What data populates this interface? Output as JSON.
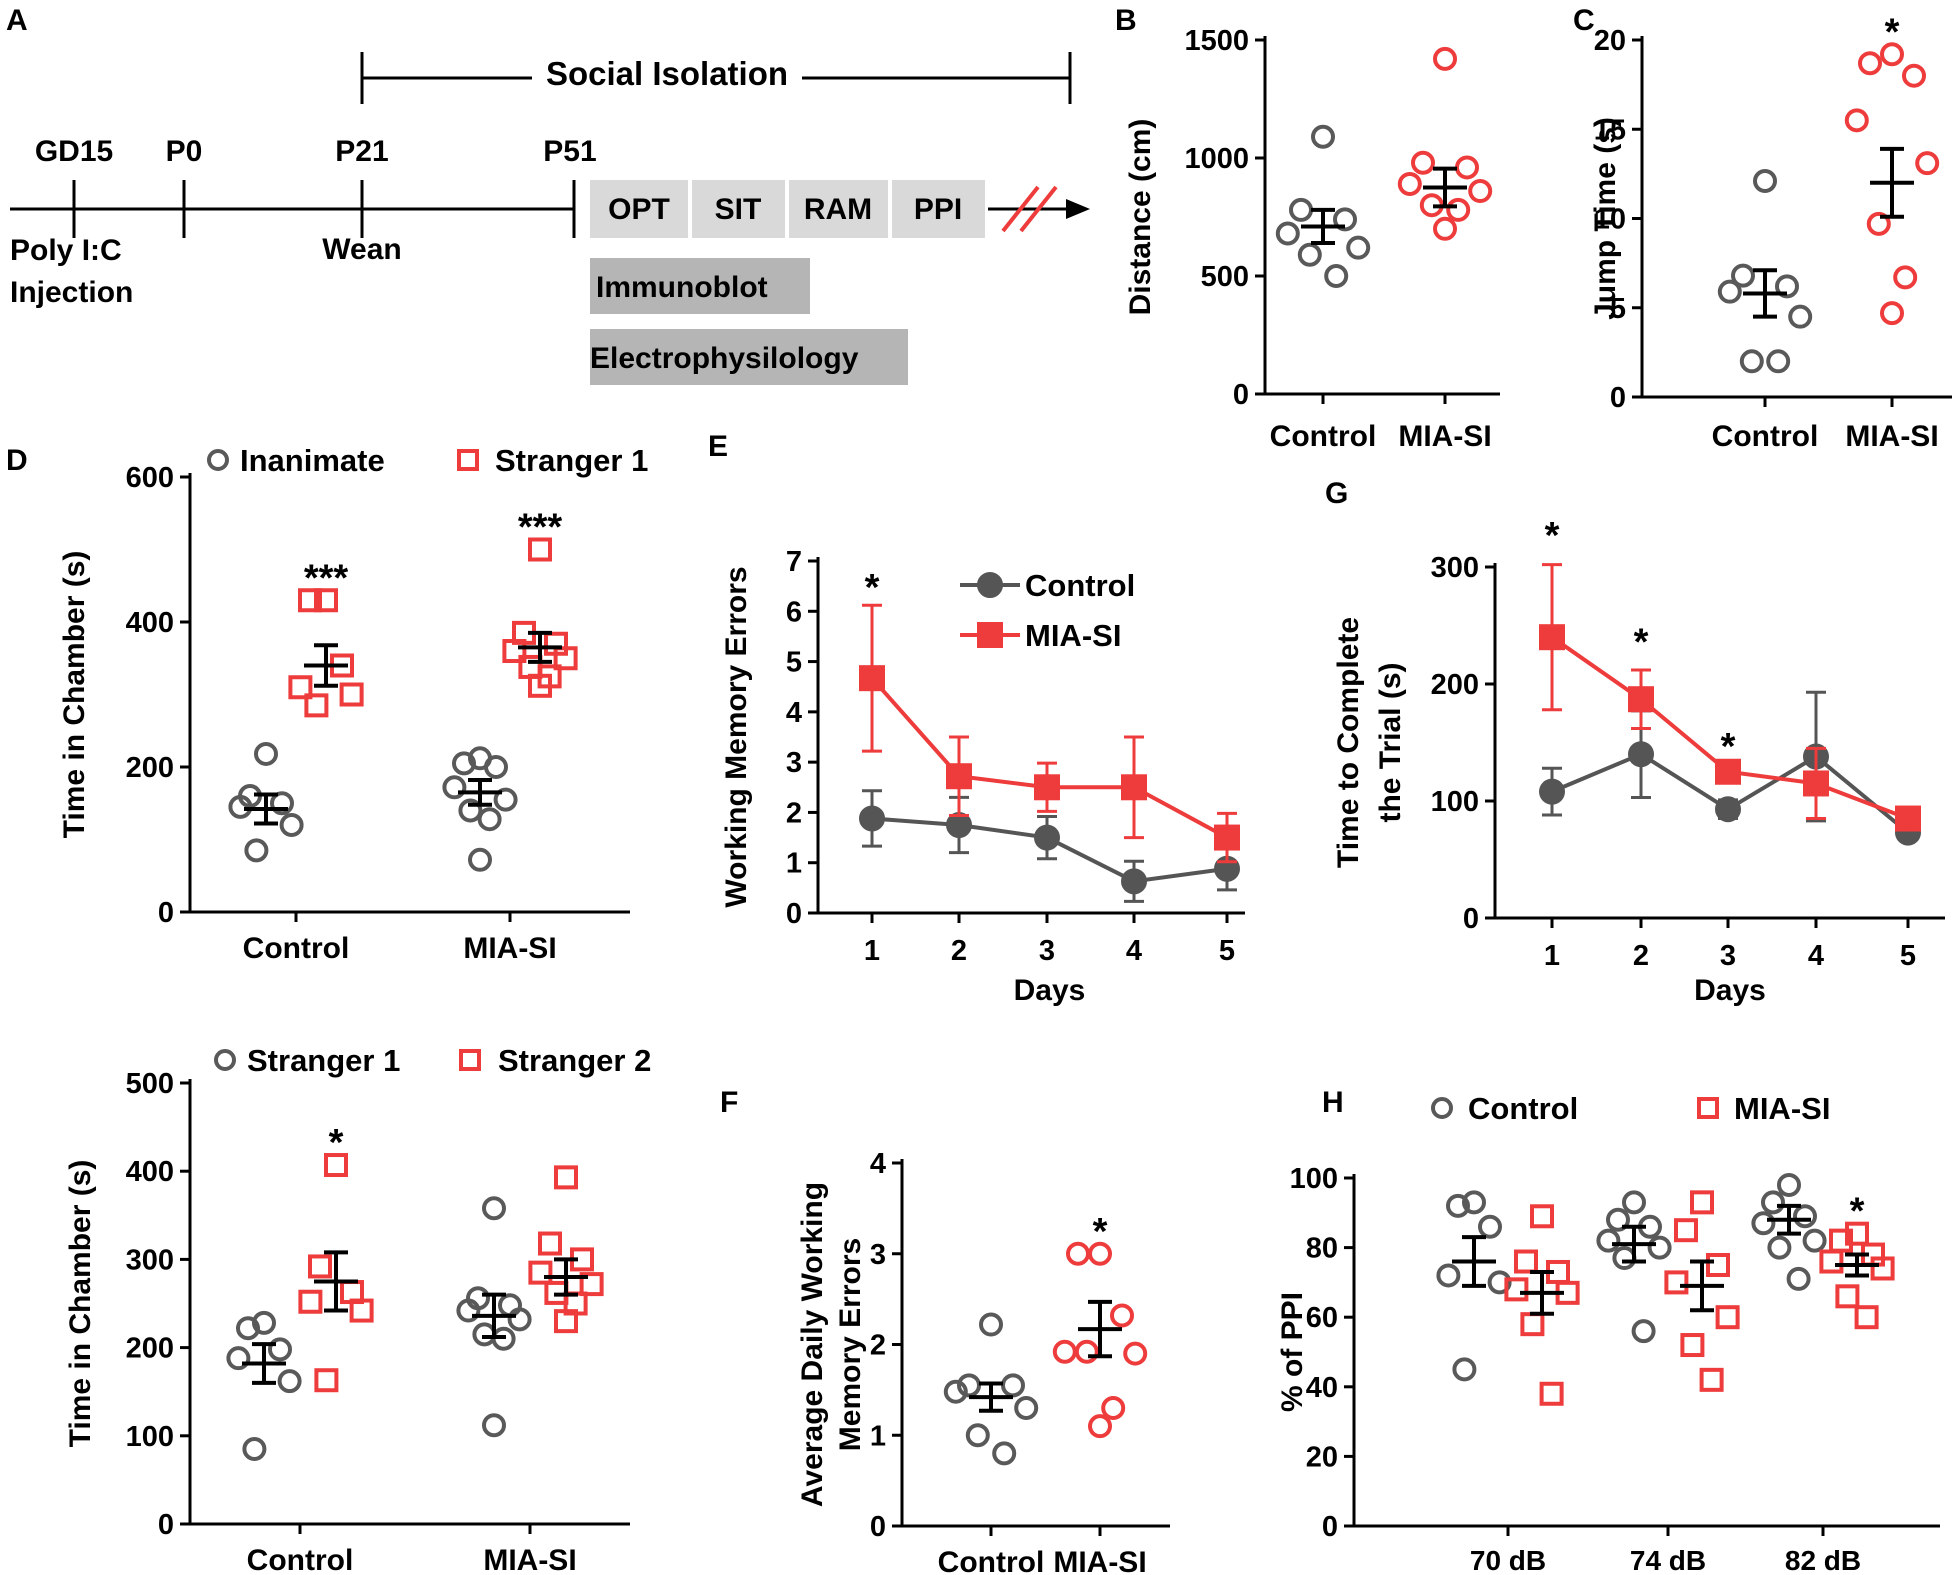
{
  "colors": {
    "control": "#595959",
    "control_line": "#555555",
    "mia": "#ee3b3b",
    "mean_bar": "#000000",
    "box_light": "#d9d9d9",
    "box_dark": "#b5b5b5"
  },
  "timeline": {
    "panel_label": "A",
    "isolation_label": "Social Isolation",
    "points": [
      "GD15",
      "P0",
      "P21",
      "P51"
    ],
    "below_labels": [
      "Poly I:C",
      "Injection",
      "Wean"
    ],
    "tests": [
      "OPT",
      "SIT",
      "RAM",
      "PPI"
    ],
    "immunoblot": "Immunoblot",
    "ephys": "Electrophysilology"
  },
  "chart_data": [
    {
      "id": "B",
      "type": "scatter",
      "panel_label": "B",
      "ylabel": "Distance (cm)",
      "ylim": [
        0,
        1500
      ],
      "yticks": [
        "0",
        "500",
        "1000",
        "1500"
      ],
      "categories": [
        "Control",
        "MIA-SI"
      ],
      "groups": [
        {
          "name": "Control",
          "marker": "circle",
          "color": "control",
          "points": [
            1090,
            780,
            740,
            680,
            620,
            590,
            500
          ],
          "mean": 710,
          "sem": 70
        },
        {
          "name": "MIA-SI",
          "marker": "circle",
          "color": "mia",
          "points": [
            1420,
            980,
            960,
            890,
            860,
            800,
            780,
            700
          ],
          "mean": 875,
          "sem": 80
        }
      ],
      "annotations": []
    },
    {
      "id": "C",
      "type": "scatter",
      "panel_label": "C",
      "ylabel": "Jump Time (s)",
      "ylim": [
        0,
        20
      ],
      "yticks": [
        "0",
        "5",
        "10",
        "15",
        "20"
      ],
      "categories": [
        "Control",
        "MIA-SI"
      ],
      "groups": [
        {
          "name": "Control",
          "marker": "circle",
          "color": "control",
          "points": [
            12.1,
            6.8,
            6.2,
            5.9,
            4.5,
            2.0,
            2.0
          ],
          "mean": 5.8,
          "sem": 1.3
        },
        {
          "name": "MIA-SI",
          "marker": "circle",
          "color": "mia",
          "points": [
            19.2,
            18.7,
            18.0,
            15.5,
            13.1,
            9.7,
            6.7,
            4.7
          ],
          "mean": 12.0,
          "sem": 1.9
        }
      ],
      "annotations": [
        {
          "group": 1,
          "text": "*"
        }
      ]
    },
    {
      "id": "D1",
      "type": "scatter",
      "panel_label": "D",
      "ylabel": "Time in Chamber (s)",
      "ylim": [
        0,
        600
      ],
      "yticks": [
        "0",
        "200",
        "400",
        "600"
      ],
      "categories": [
        "Control",
        "MIA-SI"
      ],
      "legend": [
        {
          "label": "Inanimate",
          "marker": "circle",
          "color": "control"
        },
        {
          "label": "Stranger 1",
          "marker": "square",
          "color": "mia"
        }
      ],
      "groups": [
        {
          "name": "Control Inanimate",
          "category": 0,
          "offset": -1,
          "marker": "circle",
          "color": "control",
          "points": [
            218,
            160,
            150,
            145,
            120,
            85
          ],
          "mean": 142,
          "sem": 20
        },
        {
          "name": "Control Stranger 1",
          "category": 0,
          "offset": 1,
          "marker": "square",
          "color": "mia",
          "points": [
            430,
            430,
            340,
            310,
            300,
            285
          ],
          "mean": 340,
          "sem": 28
        },
        {
          "name": "MIA-SI Inanimate",
          "category": 1,
          "offset": -1,
          "marker": "circle",
          "color": "control",
          "points": [
            212,
            205,
            200,
            172,
            155,
            140,
            128,
            72
          ],
          "mean": 165,
          "sem": 17
        },
        {
          "name": "MIA-SI Stranger 1",
          "category": 1,
          "offset": 1,
          "marker": "square",
          "color": "mia",
          "points": [
            500,
            385,
            370,
            360,
            350,
            338,
            325,
            312
          ],
          "mean": 365,
          "sem": 20
        }
      ],
      "annotations": [
        {
          "group": 1,
          "text": "***"
        },
        {
          "group": 3,
          "text": "***"
        }
      ]
    },
    {
      "id": "D2",
      "type": "scatter",
      "panel_label": "",
      "ylabel": "Time in Chamber (s)",
      "ylim": [
        0,
        500
      ],
      "yticks": [
        "0",
        "100",
        "200",
        "300",
        "400",
        "500"
      ],
      "categories": [
        "Control",
        "MIA-SI"
      ],
      "legend": [
        {
          "label": "Stranger 1",
          "marker": "circle",
          "color": "control"
        },
        {
          "label": "Stranger 2",
          "marker": "square",
          "color": "mia"
        }
      ],
      "groups": [
        {
          "name": "Control Stranger 1",
          "category": 0,
          "offset": -1,
          "marker": "circle",
          "color": "control",
          "points": [
            228,
            222,
            198,
            188,
            162,
            85
          ],
          "mean": 182,
          "sem": 22
        },
        {
          "name": "Control Stranger 2",
          "category": 0,
          "offset": 1,
          "marker": "square",
          "color": "mia",
          "points": [
            407,
            292,
            263,
            252,
            242,
            163
          ],
          "mean": 275,
          "sem": 33
        },
        {
          "name": "MIA-SI Stranger 1",
          "category": 1,
          "offset": -1,
          "marker": "circle",
          "color": "control",
          "points": [
            358,
            256,
            248,
            242,
            232,
            215,
            210,
            112
          ],
          "mean": 236,
          "sem": 24
        },
        {
          "name": "MIA-SI Stranger 2",
          "category": 1,
          "offset": 1,
          "marker": "square",
          "color": "mia",
          "points": [
            393,
            318,
            300,
            285,
            272,
            262,
            250,
            230
          ],
          "mean": 280,
          "sem": 20
        }
      ],
      "annotations": [
        {
          "group": 1,
          "text": "*"
        }
      ]
    },
    {
      "id": "E",
      "type": "line",
      "panel_label": "E",
      "ylabel": "Working Memory Errors",
      "xlabel": "Days",
      "ylim": [
        0,
        7
      ],
      "yticks": [
        "0",
        "1",
        "2",
        "3",
        "4",
        "5",
        "6",
        "7"
      ],
      "x": [
        1,
        2,
        3,
        4,
        5
      ],
      "xticks": [
        "1",
        "2",
        "3",
        "4",
        "5"
      ],
      "legend": [
        {
          "label": "Control",
          "marker": "circle",
          "color": "control_line"
        },
        {
          "label": "MIA-SI",
          "marker": "square",
          "color": "mia"
        }
      ],
      "series": [
        {
          "name": "Control",
          "marker": "circle",
          "color": "control_line",
          "values": [
            1.88,
            1.75,
            1.5,
            0.63,
            0.88
          ],
          "err": [
            0.55,
            0.55,
            0.42,
            0.4,
            0.42
          ]
        },
        {
          "name": "MIA-SI",
          "marker": "square",
          "color": "mia",
          "values": [
            4.67,
            2.72,
            2.5,
            2.5,
            1.5
          ],
          "err": [
            1.45,
            0.78,
            0.48,
            1.0,
            0.48
          ]
        }
      ],
      "annotations": [
        {
          "x": 1,
          "y": 6.5,
          "text": "*"
        }
      ]
    },
    {
      "id": "G",
      "type": "line",
      "panel_label": "G",
      "ylabel": [
        "Time to Complete",
        "the Trial (s)"
      ],
      "xlabel": "Days",
      "ylim": [
        0,
        300
      ],
      "yticks": [
        "0",
        "100",
        "200",
        "300"
      ],
      "x": [
        1,
        2,
        3,
        4,
        5
      ],
      "xticks": [
        "1",
        "2",
        "3",
        "4",
        "5"
      ],
      "series": [
        {
          "name": "Control",
          "marker": "circle",
          "color": "control_line",
          "values": [
            108,
            140,
            93,
            138,
            73
          ],
          "err": [
            20,
            37,
            8,
            55,
            5
          ]
        },
        {
          "name": "MIA-SI",
          "marker": "square",
          "color": "mia",
          "values": [
            240,
            187,
            125,
            115,
            85
          ],
          "err": [
            62,
            25,
            5,
            30,
            5
          ]
        }
      ],
      "annotations": [
        {
          "x": 1,
          "y": 328,
          "text": "*"
        },
        {
          "x": 2,
          "y": 237,
          "text": "*"
        },
        {
          "x": 3,
          "y": 148,
          "text": "*"
        }
      ]
    },
    {
      "id": "F",
      "type": "scatter",
      "panel_label": "F",
      "ylabel": [
        "Average Daily Working",
        "Memory Errors"
      ],
      "ylim": [
        0,
        4
      ],
      "yticks": [
        "0",
        "1",
        "2",
        "3",
        "4"
      ],
      "categories": [
        "Control",
        "MIA-SI"
      ],
      "groups": [
        {
          "name": "Control",
          "marker": "circle",
          "color": "control",
          "points": [
            2.22,
            1.55,
            1.55,
            1.48,
            1.3,
            1.0,
            0.8
          ],
          "mean": 1.42,
          "sem": 0.15
        },
        {
          "name": "MIA-SI",
          "marker": "circle",
          "color": "mia",
          "points": [
            3.0,
            3.0,
            2.32,
            1.92,
            1.9,
            1.92,
            1.3,
            1.1
          ],
          "mean": 2.17,
          "sem": 0.3
        }
      ],
      "annotations": [
        {
          "group": 1,
          "text": "*"
        }
      ]
    },
    {
      "id": "H",
      "type": "scatter",
      "panel_label": "H",
      "ylabel": "% of PPI",
      "ylim": [
        0,
        100
      ],
      "yticks": [
        "0",
        "20",
        "40",
        "60",
        "80",
        "100"
      ],
      "categories": [
        "70 dB",
        "74 dB",
        "82 dB"
      ],
      "legend": [
        {
          "label": "Control",
          "marker": "circle",
          "color": "control"
        },
        {
          "label": "MIA-SI",
          "marker": "square",
          "color": "mia"
        }
      ],
      "groups": [
        {
          "name": "70 dB Control",
          "category": 0,
          "offset": -1,
          "marker": "circle",
          "color": "control",
          "points": [
            93,
            92,
            86,
            72,
            70,
            45
          ],
          "mean": 76,
          "sem": 7
        },
        {
          "name": "70 dB MIA-SI",
          "category": 0,
          "offset": 1,
          "marker": "square",
          "color": "mia",
          "points": [
            89,
            76,
            73,
            68,
            67,
            58,
            38
          ],
          "mean": 67,
          "sem": 6
        },
        {
          "name": "74 dB Control",
          "category": 1,
          "offset": -1,
          "marker": "circle",
          "color": "control",
          "points": [
            93,
            88,
            86,
            82,
            80,
            77,
            56
          ],
          "mean": 81,
          "sem": 5
        },
        {
          "name": "74 dB MIA-SI",
          "category": 1,
          "offset": 1,
          "marker": "square",
          "color": "mia",
          "points": [
            93,
            85,
            75,
            70,
            60,
            52,
            42
          ],
          "mean": 69,
          "sem": 7
        },
        {
          "name": "82 dB Control",
          "category": 2,
          "offset": -1,
          "marker": "circle",
          "color": "control",
          "points": [
            98,
            93,
            89,
            87,
            82,
            80,
            71
          ],
          "mean": 88,
          "sem": 4
        },
        {
          "name": "82 dB MIA-SI",
          "category": 2,
          "offset": 1,
          "marker": "square",
          "color": "mia",
          "points": [
            84,
            82,
            78,
            76,
            74,
            66,
            60
          ],
          "mean": 75,
          "sem": 3
        }
      ],
      "annotations": [
        {
          "group": 5,
          "text": "*"
        }
      ]
    }
  ]
}
